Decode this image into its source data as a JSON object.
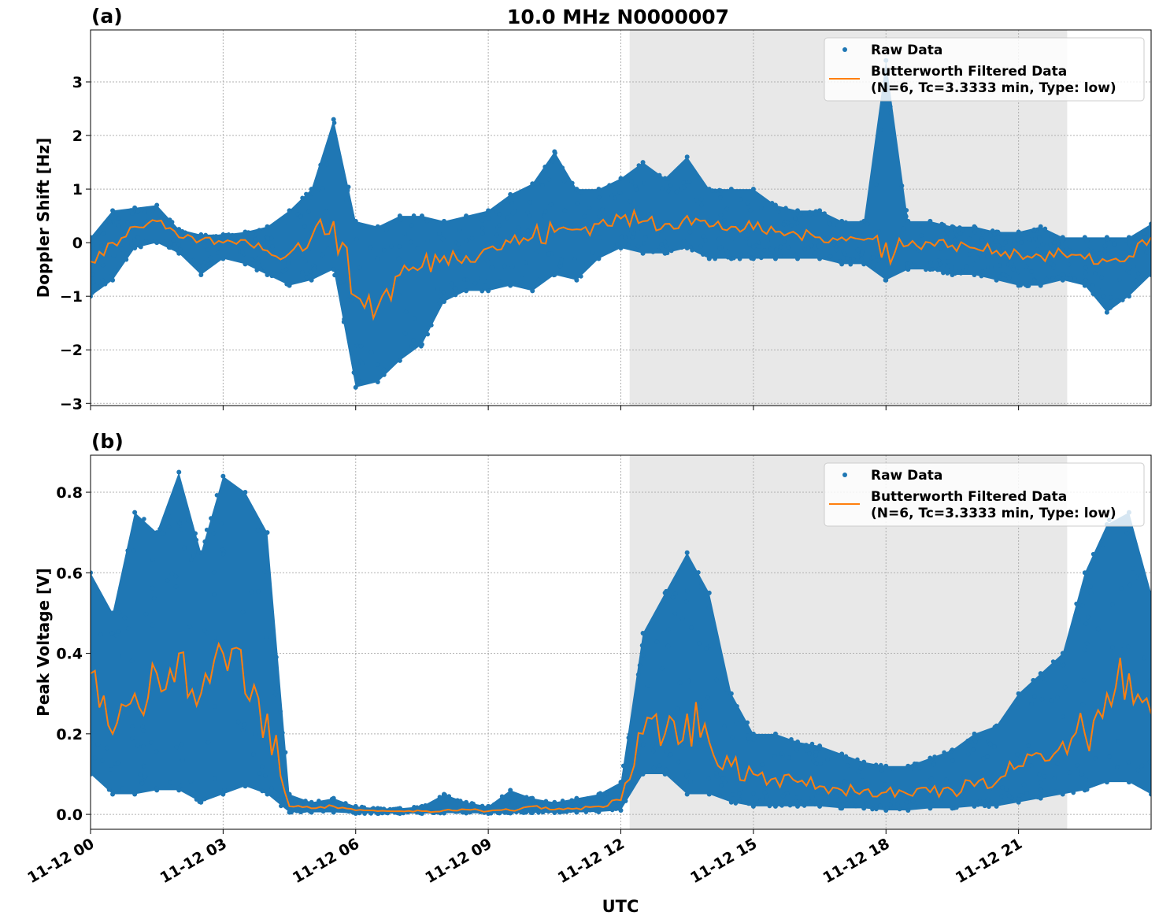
{
  "chart_data": {
    "type": "scatter",
    "title": "10.0 MHz N0000007",
    "xlabel": "UTC",
    "x_unit": "hours after 11-12 00 UTC",
    "xlim": [
      0,
      24
    ],
    "x_ticks": [
      0,
      3,
      6,
      9,
      12,
      15,
      18,
      21
    ],
    "x_tick_labels": [
      "11-12 00",
      "11-12 03",
      "11-12 06",
      "11-12 09",
      "11-12 12",
      "11-12 15",
      "11-12 18",
      "11-12 21"
    ],
    "shaded_interval": [
      12.2,
      22.1
    ],
    "grid": true,
    "legend_placement": "upper right",
    "colors": {
      "raw": "#1f77b4",
      "filtered": "#ff7f0e",
      "shade": "#e8e8e8"
    },
    "legend": {
      "raw": "Raw Data",
      "filtered_line1": "Butterworth Filtered Data",
      "filtered_line2": "(N=6, Tc=3.3333 min, Type: low)"
    },
    "panels": [
      {
        "label": "(a)",
        "ylabel": "Doppler Shift [Hz]",
        "ylim": [
          -3.04,
          3.97
        ],
        "y_ticks": [
          -3,
          -2,
          -1,
          0,
          1,
          2,
          3
        ],
        "y_tick_labels": [
          "−3",
          "−2",
          "−1",
          "0",
          "1",
          "2",
          "3"
        ],
        "x": [
          0,
          0.5,
          1,
          1.5,
          2,
          2.5,
          3,
          3.5,
          4,
          4.5,
          5,
          5.5,
          6,
          6.5,
          7,
          7.5,
          8,
          8.5,
          9,
          9.5,
          10,
          10.5,
          11,
          11.5,
          12,
          12.5,
          13,
          13.5,
          14,
          14.5,
          15,
          15.5,
          16,
          16.5,
          17,
          17.5,
          18,
          18.5,
          19,
          19.5,
          20,
          20.5,
          21,
          21.5,
          22,
          22.5,
          23,
          23.5,
          24
        ],
        "filtered": [
          -0.35,
          0.0,
          0.3,
          0.4,
          0.1,
          0.05,
          0.0,
          0.05,
          -0.15,
          -0.2,
          0.1,
          0.4,
          -1.0,
          -1.2,
          -0.6,
          -0.45,
          -0.25,
          -0.25,
          -0.1,
          0.0,
          0.1,
          0.2,
          0.25,
          0.35,
          0.45,
          0.4,
          0.35,
          0.5,
          0.3,
          0.3,
          0.25,
          0.2,
          0.15,
          0.1,
          0.1,
          0.05,
          0.0,
          -0.05,
          0.0,
          -0.05,
          -0.1,
          -0.15,
          -0.2,
          -0.25,
          -0.2,
          -0.3,
          -0.35,
          -0.25,
          0.1
        ],
        "raw_upper": [
          0.1,
          0.6,
          0.65,
          0.7,
          0.25,
          0.15,
          0.15,
          0.2,
          0.3,
          0.6,
          1.0,
          2.3,
          0.4,
          0.3,
          0.5,
          0.5,
          0.4,
          0.5,
          0.6,
          0.9,
          1.1,
          1.7,
          1.0,
          1.0,
          1.2,
          1.5,
          1.2,
          1.6,
          1.0,
          1.0,
          1.0,
          0.7,
          0.6,
          0.6,
          0.4,
          0.4,
          3.4,
          0.4,
          0.4,
          0.3,
          0.3,
          0.2,
          0.2,
          0.3,
          0.1,
          0.1,
          0.1,
          0.1,
          0.35
        ],
        "raw_lower": [
          -1.0,
          -0.7,
          -0.1,
          0.0,
          -0.2,
          -0.6,
          -0.3,
          -0.4,
          -0.6,
          -0.8,
          -0.7,
          -0.5,
          -2.7,
          -2.6,
          -2.2,
          -1.9,
          -1.1,
          -0.9,
          -0.9,
          -0.8,
          -0.9,
          -0.6,
          -0.7,
          -0.3,
          -0.1,
          -0.2,
          -0.2,
          -0.1,
          -0.3,
          -0.3,
          -0.3,
          -0.3,
          -0.3,
          -0.3,
          -0.4,
          -0.4,
          -0.7,
          -0.5,
          -0.5,
          -0.6,
          -0.6,
          -0.7,
          -0.8,
          -0.8,
          -0.7,
          -0.8,
          -1.3,
          -1.0,
          -0.6
        ]
      },
      {
        "label": "(b)",
        "ylabel": "Peak Voltage [V]",
        "ylim": [
          -0.037,
          0.892
        ],
        "y_ticks": [
          0,
          0.2,
          0.4,
          0.6,
          0.8
        ],
        "y_tick_labels": [
          "0.0",
          "0.2",
          "0.4",
          "0.6",
          "0.8"
        ],
        "x": [
          0,
          0.5,
          1,
          1.5,
          2,
          2.5,
          3,
          3.5,
          4,
          4.5,
          5,
          5.5,
          6,
          6.5,
          7,
          7.5,
          8,
          8.5,
          9,
          9.5,
          10,
          10.5,
          11,
          11.5,
          12,
          12.5,
          13,
          13.5,
          14,
          14.5,
          15,
          15.5,
          16,
          16.5,
          17,
          17.5,
          18,
          18.5,
          19,
          19.5,
          20,
          20.5,
          21,
          21.5,
          22,
          22.5,
          23,
          23.5,
          24
        ],
        "filtered": [
          0.35,
          0.2,
          0.3,
          0.35,
          0.4,
          0.3,
          0.4,
          0.3,
          0.25,
          0.02,
          0.015,
          0.02,
          0.01,
          0.008,
          0.008,
          0.008,
          0.01,
          0.012,
          0.008,
          0.01,
          0.02,
          0.012,
          0.015,
          0.02,
          0.035,
          0.2,
          0.2,
          0.25,
          0.18,
          0.12,
          0.1,
          0.09,
          0.08,
          0.07,
          0.06,
          0.06,
          0.055,
          0.05,
          0.055,
          0.06,
          0.07,
          0.08,
          0.12,
          0.15,
          0.18,
          0.2,
          0.3,
          0.35,
          0.25
        ],
        "raw_upper": [
          0.6,
          0.5,
          0.75,
          0.7,
          0.85,
          0.65,
          0.84,
          0.8,
          0.7,
          0.05,
          0.03,
          0.04,
          0.02,
          0.015,
          0.015,
          0.02,
          0.05,
          0.03,
          0.02,
          0.06,
          0.04,
          0.03,
          0.04,
          0.05,
          0.08,
          0.45,
          0.55,
          0.65,
          0.55,
          0.3,
          0.2,
          0.2,
          0.18,
          0.17,
          0.15,
          0.13,
          0.12,
          0.12,
          0.14,
          0.16,
          0.2,
          0.22,
          0.3,
          0.35,
          0.4,
          0.6,
          0.72,
          0.75,
          0.55
        ],
        "raw_lower": [
          0.1,
          0.05,
          0.05,
          0.06,
          0.06,
          0.03,
          0.05,
          0.07,
          0.05,
          0.005,
          0.005,
          0.005,
          0.002,
          0.002,
          0.002,
          0.002,
          0.003,
          0.003,
          0.002,
          0.003,
          0.004,
          0.004,
          0.005,
          0.006,
          0.01,
          0.1,
          0.1,
          0.05,
          0.05,
          0.03,
          0.02,
          0.02,
          0.02,
          0.02,
          0.015,
          0.015,
          0.01,
          0.01,
          0.015,
          0.015,
          0.02,
          0.02,
          0.03,
          0.04,
          0.05,
          0.06,
          0.08,
          0.08,
          0.05
        ]
      }
    ]
  }
}
